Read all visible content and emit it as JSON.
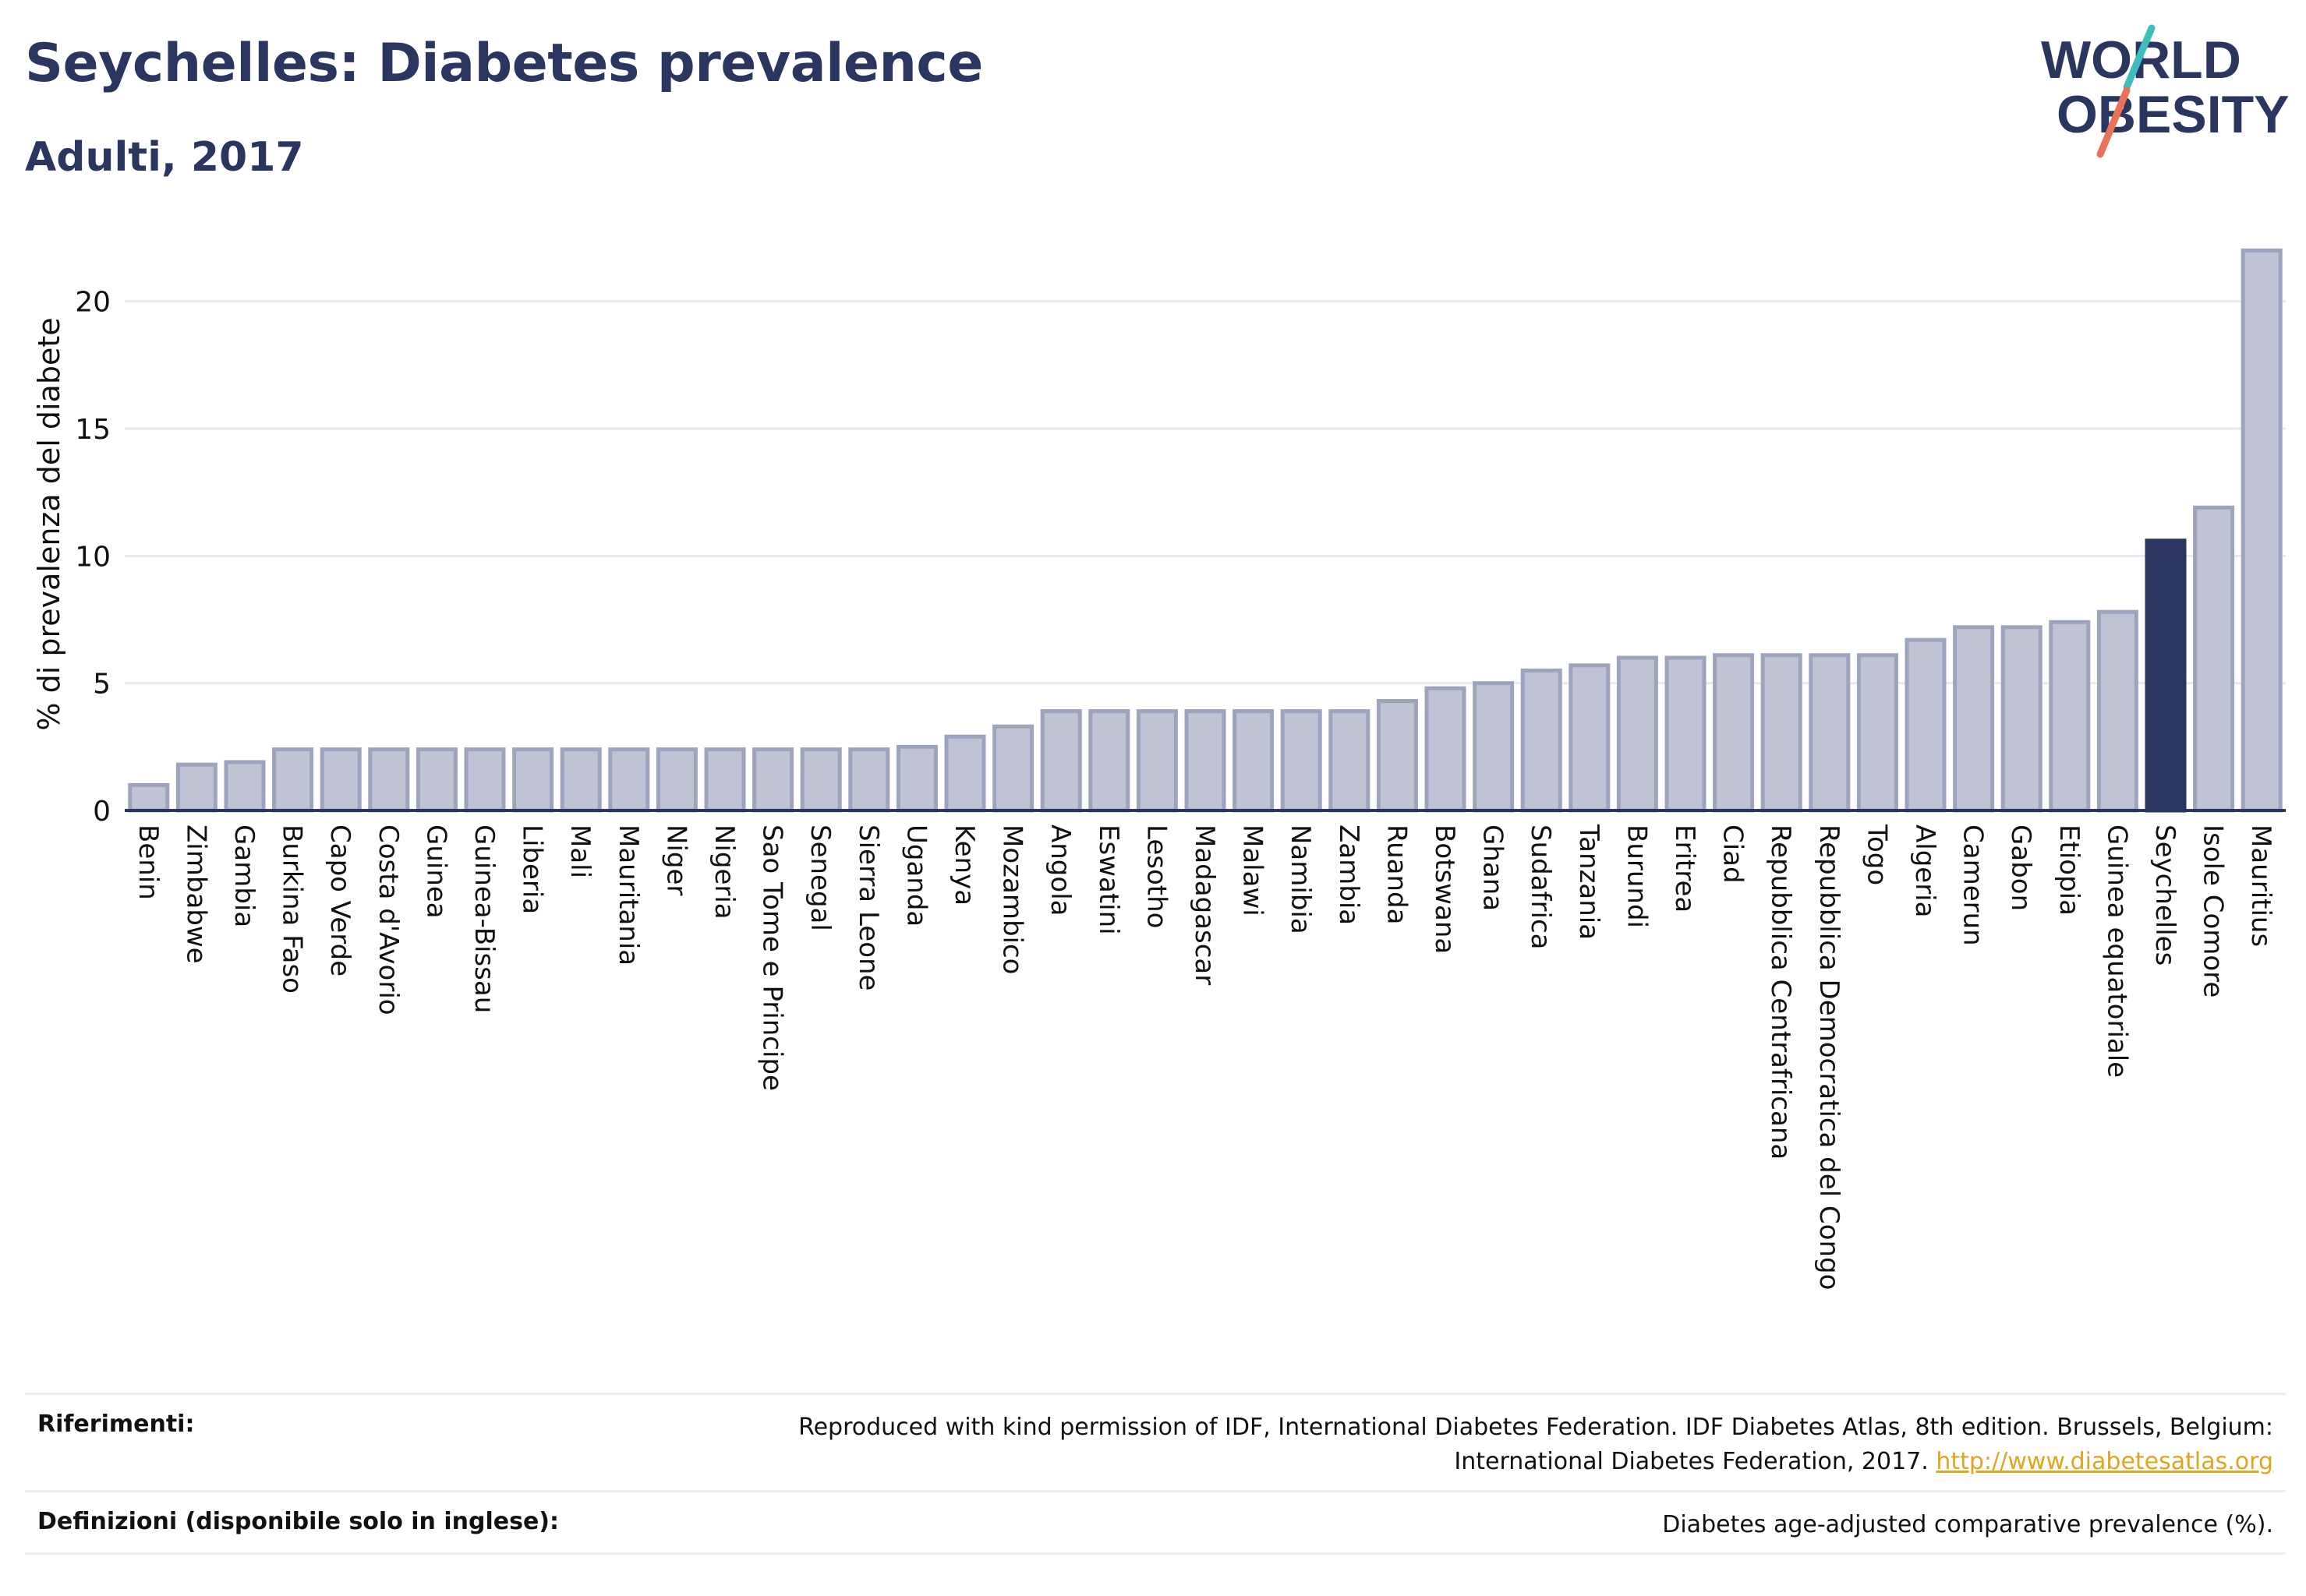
{
  "header": {
    "title": "Seychelles: Diabetes prevalence",
    "subtitle": "Adulti, 2017",
    "logo_line1": "WORLD",
    "logo_line2": "OBESITY"
  },
  "colors": {
    "title": "#2b3660",
    "bar_fill": "#bfc3d3",
    "bar_stroke": "#9ea4bd",
    "highlight": "#2b3660",
    "grid": "#e8eaf0",
    "logo_teal": "#3dbdbd",
    "logo_coral": "#e8735a",
    "link": "#e0a521"
  },
  "chart_data": {
    "type": "bar",
    "ylabel": "% di prevalenza del diabete",
    "xlabel": "",
    "ylim": [
      0,
      22.5
    ],
    "yticks": [
      0,
      5,
      10,
      15,
      20
    ],
    "grid": true,
    "highlight": "Seychelles",
    "categories": [
      "Benin",
      "Zimbabwe",
      "Gambia",
      "Burkina Faso",
      "Capo Verde",
      "Costa d'Avorio",
      "Guinea",
      "Guinea-Bissau",
      "Liberia",
      "Mali",
      "Mauritania",
      "Niger",
      "Nigeria",
      "Sao Tome e Principe",
      "Senegal",
      "Sierra Leone",
      "Uganda",
      "Kenya",
      "Mozambico",
      "Angola",
      "Eswatini",
      "Lesotho",
      "Madagascar",
      "Malawi",
      "Namibia",
      "Zambia",
      "Ruanda",
      "Botswana",
      "Ghana",
      "Sudafrica",
      "Tanzania",
      "Burundi",
      "Eritrea",
      "Ciad",
      "Repubblica Centrafricana",
      "Repubblica Democratica del Congo",
      "Togo",
      "Algeria",
      "Camerun",
      "Gabon",
      "Etiopia",
      "Guinea equatoriale",
      "Seychelles",
      "Isole Comore",
      "Mauritius"
    ],
    "values": [
      1.0,
      1.8,
      1.9,
      2.4,
      2.4,
      2.4,
      2.4,
      2.4,
      2.4,
      2.4,
      2.4,
      2.4,
      2.4,
      2.4,
      2.4,
      2.4,
      2.5,
      2.9,
      3.3,
      3.9,
      3.9,
      3.9,
      3.9,
      3.9,
      3.9,
      3.9,
      4.3,
      4.8,
      5.0,
      5.5,
      5.7,
      6.0,
      6.0,
      6.1,
      6.1,
      6.1,
      6.1,
      6.7,
      7.2,
      7.2,
      7.4,
      7.8,
      10.6,
      11.9,
      22.0
    ]
  },
  "references": {
    "label": "Riferimenti:",
    "line1": "Reproduced with kind permission of IDF, International Diabetes Federation. IDF Diabetes Atlas, 8th edition. Brussels, Belgium:",
    "line2": "International Diabetes Federation, 2017.",
    "link": "http://www.diabetesatlas.org"
  },
  "definitions": {
    "label": "Definizioni (disponibile solo in inglese):",
    "text": "Diabetes age-adjusted comparative prevalence (%)."
  }
}
